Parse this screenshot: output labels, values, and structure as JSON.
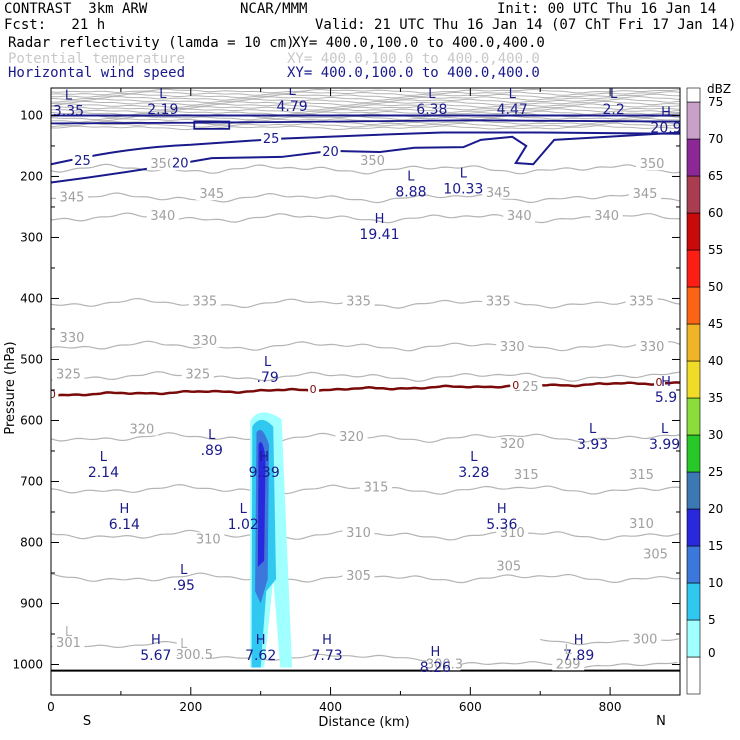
{
  "header": {
    "model": "CONTRAST  3km ARW",
    "center": "NCAR/MMM",
    "init": "Init: 00 UTC Thu 16 Jan 14",
    "fcst": "Fcst:   21 h",
    "valid": "Valid: 21 UTC Thu 16 Jan 14 (07 ChT Fri 17 Jan 14)",
    "fields": [
      {
        "name": "Radar reflectivity (lamda = 10 cm)",
        "xy": "XY= 400.0,100.0 to 400.0,400.0",
        "color": "#000000"
      },
      {
        "name": "Potential temperature",
        "xy": "XY= 400.0,100.0 to 400.0,400.0",
        "color": "#c8c8c8"
      },
      {
        "name": "Horizontal wind speed",
        "xy": "XY= 400.0,100.0 to 400.0,400.0",
        "color": "#1a1a8c"
      }
    ]
  },
  "chart_data": {
    "type": "cross-section",
    "xlabel": "Distance (km)",
    "ylabel": "Pressure (hPa)",
    "x_ticks": [
      0,
      200,
      400,
      600,
      800
    ],
    "x_range": [
      0,
      900
    ],
    "y_ticks": [
      100,
      200,
      300,
      400,
      500,
      600,
      700,
      800,
      900,
      1000
    ],
    "y_range": [
      55,
      1050
    ],
    "x_end_labels": {
      "left": "S",
      "right": "N"
    },
    "colorbar": {
      "unit": "dBZ",
      "levels": [
        0,
        5,
        10,
        15,
        20,
        25,
        30,
        35,
        40,
        45,
        50,
        55,
        60,
        65,
        70,
        75
      ],
      "colors": [
        "#ffffff",
        "#a0ffff",
        "#30c8f0",
        "#3c78dc",
        "#2828dc",
        "#3c78b4",
        "#28c828",
        "#8cdc3c",
        "#f0dc28",
        "#f0b428",
        "#fa6414",
        "#fa1e14",
        "#c80a0a",
        "#aa3c50",
        "#8c2896",
        "#c8a0c8"
      ]
    },
    "theta_contours": [
      {
        "level": 350,
        "p": 188,
        "labels": [
          {
            "x": 160,
            "p": 183
          },
          {
            "x": 460,
            "p": 178
          },
          {
            "x": 860,
            "p": 183
          }
        ]
      },
      {
        "level": 345,
        "p": 235,
        "labels": [
          {
            "x": 30,
            "p": 238
          },
          {
            "x": 230,
            "p": 232
          },
          {
            "x": 640,
            "p": 230
          },
          {
            "x": 850,
            "p": 232
          }
        ]
      },
      {
        "level": 340,
        "p": 268,
        "labels": [
          {
            "x": 160,
            "p": 268
          },
          {
            "x": 670,
            "p": 268
          },
          {
            "x": 795,
            "p": 268
          }
        ]
      },
      {
        "level": 335,
        "p": 408,
        "labels": [
          {
            "x": 220,
            "p": 408
          },
          {
            "x": 440,
            "p": 408
          },
          {
            "x": 640,
            "p": 408
          },
          {
            "x": 845,
            "p": 408
          }
        ]
      },
      {
        "level": 330,
        "p": 478,
        "labels": [
          {
            "x": 30,
            "p": 468
          },
          {
            "x": 220,
            "p": 473
          },
          {
            "x": 660,
            "p": 483
          },
          {
            "x": 860,
            "p": 483
          }
        ]
      },
      {
        "level": 325,
        "p": 528,
        "labels": [
          {
            "x": 25,
            "p": 528
          },
          {
            "x": 210,
            "p": 528
          },
          {
            "x": 680,
            "p": 548
          }
        ]
      },
      {
        "level": 320,
        "p": 628,
        "labels": [
          {
            "x": 130,
            "p": 618
          },
          {
            "x": 430,
            "p": 630
          },
          {
            "x": 660,
            "p": 642
          }
        ]
      },
      {
        "level": 315,
        "p": 713,
        "labels": [
          {
            "x": 465,
            "p": 713
          },
          {
            "x": 680,
            "p": 693
          },
          {
            "x": 845,
            "p": 693
          }
        ]
      },
      {
        "level": 310,
        "p": 788,
        "labels": [
          {
            "x": 225,
            "p": 798
          },
          {
            "x": 440,
            "p": 788
          },
          {
            "x": 660,
            "p": 788
          },
          {
            "x": 845,
            "p": 773
          }
        ]
      },
      {
        "level": 305,
        "p": 858,
        "labels": [
          {
            "x": 440,
            "p": 858
          },
          {
            "x": 655,
            "p": 843
          },
          {
            "x": 865,
            "p": 823
          }
        ]
      },
      {
        "level": 301,
        "p": 968,
        "labels": [
          {
            "x": 25,
            "p": 968
          }
        ]
      },
      {
        "level": 300.5,
        "p": 988,
        "labels": [
          {
            "x": 205,
            "p": 988
          }
        ]
      },
      {
        "level": 300.3,
        "p": 1003,
        "labels": [
          {
            "x": 563,
            "p": 1003
          }
        ]
      },
      {
        "level": 300,
        "p": 962,
        "labels": [
          {
            "x": 850,
            "p": 962
          }
        ]
      },
      {
        "level": 299,
        "p": 1003,
        "labels": [
          {
            "x": 740,
            "p": 1003
          }
        ]
      }
    ],
    "zero_contour": {
      "level": 0,
      "p_left": 558,
      "p_right": 538
    },
    "wind_contours": [
      {
        "level": 25,
        "labels": [
          {
            "x": 45,
            "p": 178
          },
          {
            "x": 315,
            "p": 142
          }
        ]
      },
      {
        "level": 20,
        "labels": [
          {
            "x": 185,
            "p": 182
          },
          {
            "x": 400,
            "p": 163
          }
        ]
      }
    ],
    "wind_extrema": [
      {
        "type": "L",
        "value": "3.35",
        "x": 25,
        "p": 80
      },
      {
        "type": "L",
        "value": "2.19",
        "x": 160,
        "p": 78
      },
      {
        "type": "L",
        "value": "4.79",
        "x": 345,
        "p": 73
      },
      {
        "type": "L",
        "value": "6.38",
        "x": 545,
        "p": 78
      },
      {
        "type": "L",
        "value": "4.47",
        "x": 660,
        "p": 78
      },
      {
        "type": "L",
        "value": "2.2",
        "x": 805,
        "p": 78
      },
      {
        "type": "H",
        "value": "20.9",
        "x": 880,
        "p": 108
      },
      {
        "type": "L",
        "value": "8.88",
        "x": 515,
        "p": 213
      },
      {
        "type": "L",
        "value": "10.33",
        "x": 590,
        "p": 208
      },
      {
        "type": "H",
        "value": "19.41",
        "x": 470,
        "p": 283
      },
      {
        "type": "L",
        "value": ".79",
        "x": 310,
        "p": 517
      },
      {
        "type": "H",
        "value": "5.9",
        "x": 880,
        "p": 550
      },
      {
        "type": "L",
        "value": ".89",
        "x": 230,
        "p": 637
      },
      {
        "type": "L",
        "value": "2.14",
        "x": 75,
        "p": 673
      },
      {
        "type": "H",
        "value": "9.39",
        "x": 305,
        "p": 673
      },
      {
        "type": "L",
        "value": "3.28",
        "x": 605,
        "p": 673
      },
      {
        "type": "L",
        "value": "3.93",
        "x": 775,
        "p": 627
      },
      {
        "type": "L",
        "value": "3.99",
        "x": 878,
        "p": 627
      },
      {
        "type": "H",
        "value": "6.14",
        "x": 105,
        "p": 758
      },
      {
        "type": "L",
        "value": "1.02",
        "x": 275,
        "p": 758
      },
      {
        "type": "H",
        "value": "5.36",
        "x": 645,
        "p": 758
      },
      {
        "type": "L",
        "value": ".95",
        "x": 190,
        "p": 858
      },
      {
        "type": "H",
        "value": "5.67",
        "x": 150,
        "p": 973
      },
      {
        "type": "H",
        "value": "7.62",
        "x": 300,
        "p": 973
      },
      {
        "type": "H",
        "value": "7.73",
        "x": 395,
        "p": 973
      },
      {
        "type": "H",
        "value": "8.26",
        "x": 550,
        "p": 993
      },
      {
        "type": "H",
        "value": "7.89",
        "x": 755,
        "p": 973
      }
    ],
    "theta_extrema": [
      {
        "type": "L",
        "x": 25,
        "p": 953
      },
      {
        "type": "L",
        "x": 190,
        "p": 973
      },
      {
        "type": "L",
        "x": 740,
        "p": 983
      }
    ],
    "reflectivity_core": {
      "x": [
        285,
        345
      ],
      "p": [
        588,
        1005
      ],
      "max_dbz": "20"
    }
  }
}
